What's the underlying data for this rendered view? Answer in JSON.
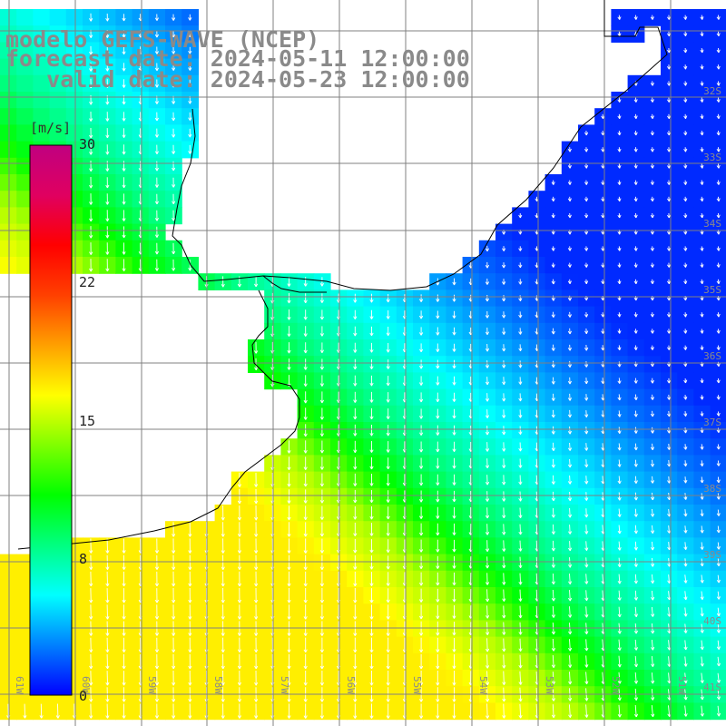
{
  "title": {
    "line1": "modelo GEFS-WAVE (NCEP)",
    "line2": "forecast date: 2024-05-11 12:00:00",
    "line3": "   valid date: 2024-05-23 12:00:00"
  },
  "colorbar": {
    "unit": "[m/s]",
    "ticks": [
      "30",
      "22",
      "15",
      "8",
      "0"
    ],
    "colors": [
      "#0000ff",
      "#0080ff",
      "#00ffff",
      "#00ff80",
      "#00ff00",
      "#80ff00",
      "#ffff00",
      "#ffa000",
      "#ff4000",
      "#ff0000",
      "#e00060",
      "#c00080"
    ]
  },
  "axes": {
    "lon_labels": [
      "61W",
      "60W",
      "59W",
      "58W",
      "57W",
      "56W",
      "55W",
      "54W",
      "53W",
      "52W",
      "51W"
    ],
    "lat_labels": [
      "32S",
      "33S",
      "34S",
      "35S",
      "36S",
      "37S",
      "38S",
      "39S",
      "40S",
      "41S"
    ]
  },
  "colors": {
    "land": "#ffffff",
    "coast": "#000000",
    "grid": "#808080",
    "arrows": "#ffffff",
    "title": "#8a8a8a"
  }
}
